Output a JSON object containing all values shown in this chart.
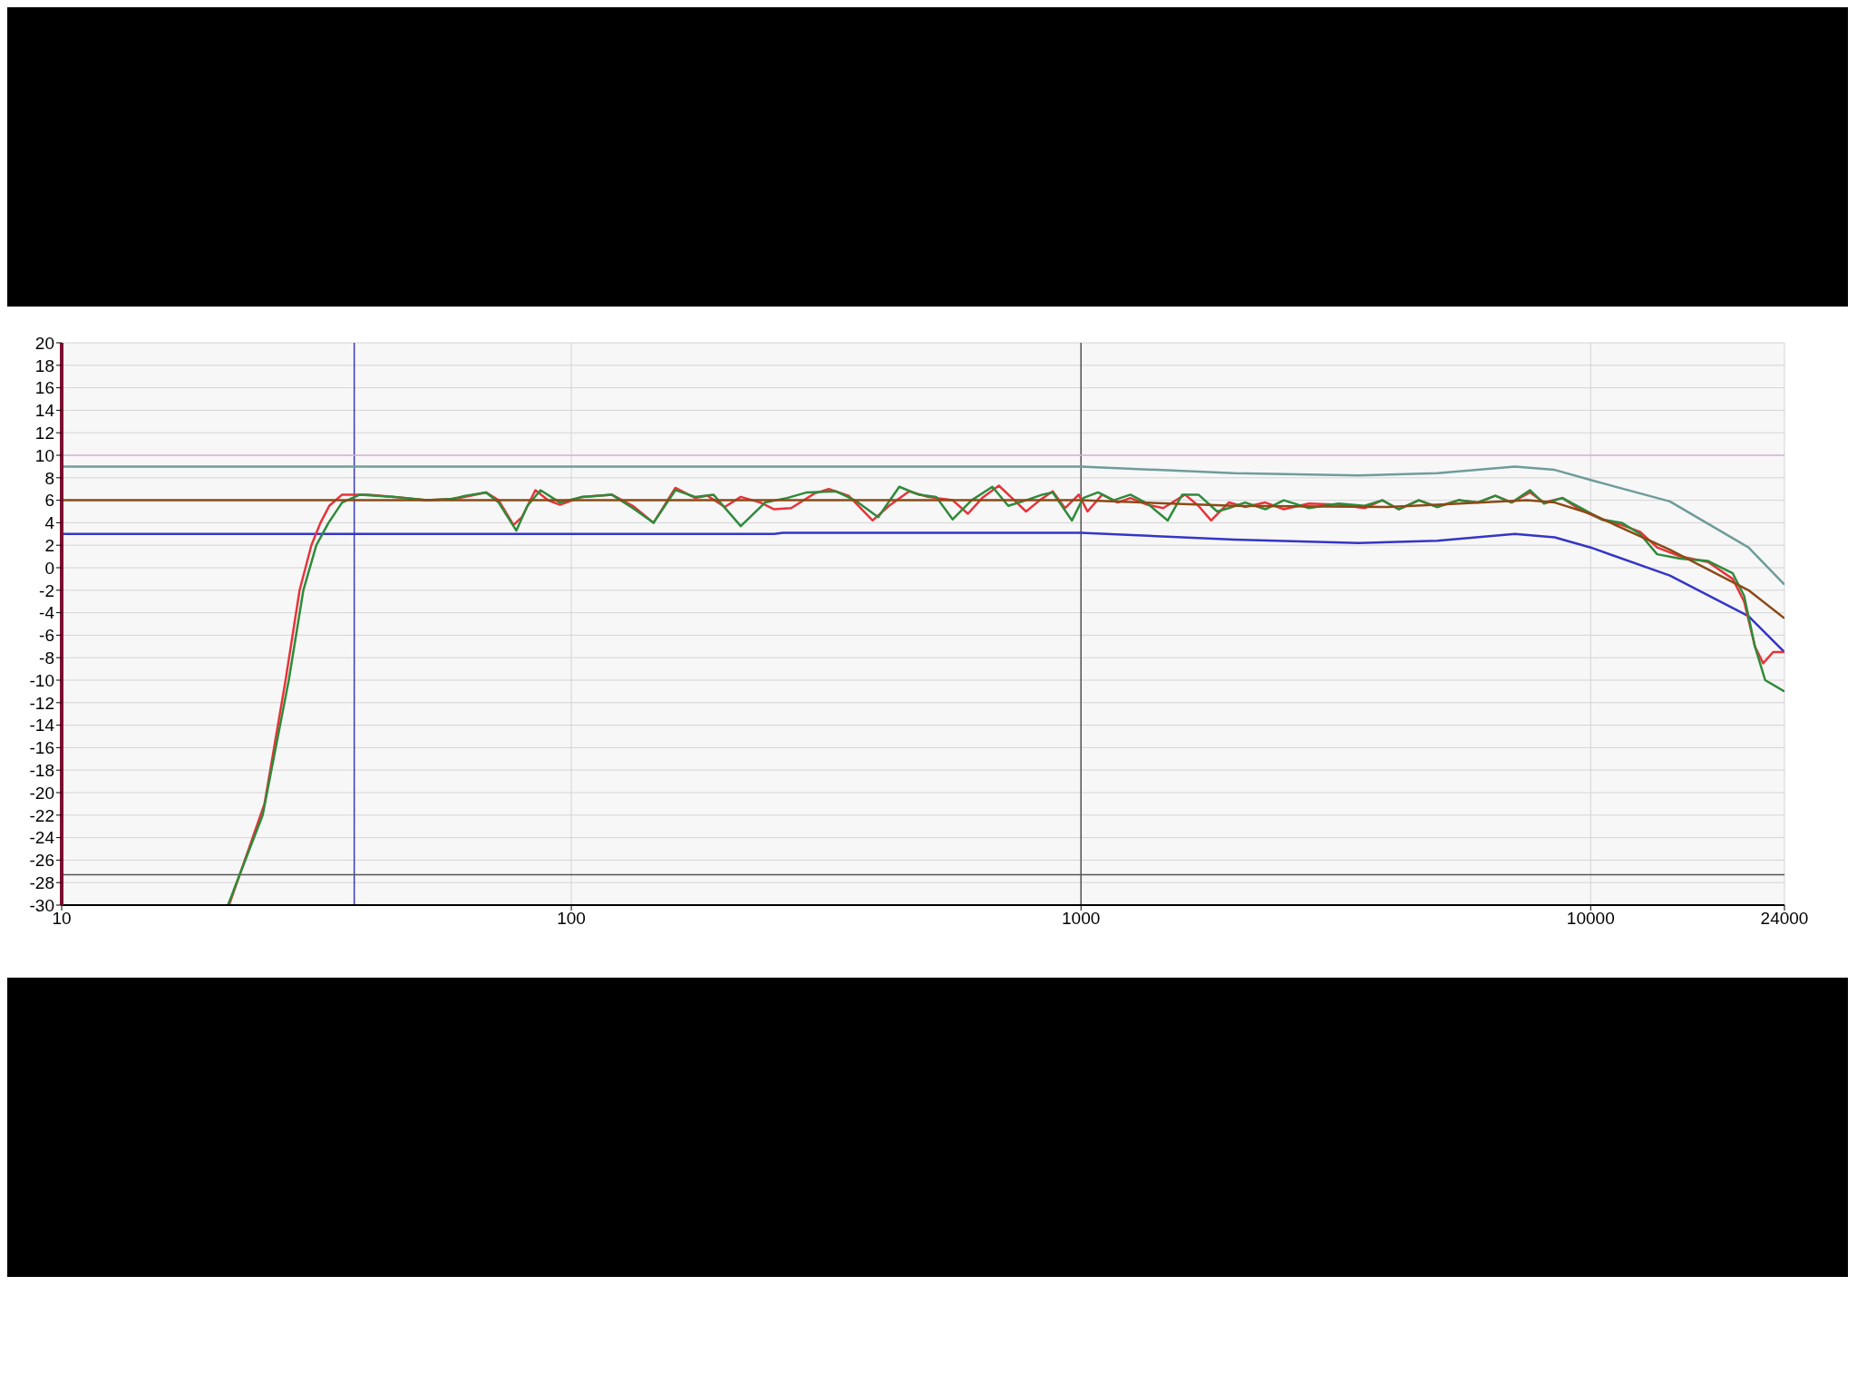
{
  "chart_data": {
    "type": "line",
    "log": "x",
    "xlim": [
      10,
      24000
    ],
    "xticks": [
      10,
      100,
      1000,
      10000,
      24000
    ],
    "ylim": [
      -30,
      20
    ],
    "yticks": [
      20,
      18,
      16,
      14,
      12,
      10,
      8,
      6,
      4,
      2,
      0,
      -2,
      -4,
      -6,
      -8,
      -10,
      -12,
      -14,
      -16,
      -18,
      -20,
      -22,
      -24,
      -26,
      -28,
      -30
    ],
    "grid": true,
    "legend": false,
    "marker": "none",
    "line_style": "solid",
    "series": [
      {
        "color": "#6f9c9c",
        "x": [
          10,
          1000,
          2000,
          3500,
          5000,
          7100,
          8500,
          10000,
          14300,
          20400,
          24000
        ],
        "values": [
          9,
          9,
          8.4,
          8.2,
          8.4,
          9.0,
          8.7,
          7.8,
          5.9,
          1.8,
          -1.5
        ]
      },
      {
        "color": "#3535c8",
        "x": [
          10,
          250,
          260,
          1000,
          2000,
          3500,
          5000,
          7100,
          8500,
          10000,
          14300,
          20400,
          24000
        ],
        "values": [
          3,
          3,
          3.1,
          3.1,
          2.5,
          2.2,
          2.4,
          3.0,
          2.7,
          1.8,
          -0.7,
          -4.3,
          -7.5
        ]
      },
      {
        "color": "#e8333a",
        "x": [
          21.3,
          25.0,
          27.5,
          29.3,
          30.9,
          32.2,
          33.5,
          35.5,
          40,
          45,
          52,
          58,
          62,
          68,
          72,
          77,
          80,
          85,
          90,
          95,
          105,
          120,
          132,
          145,
          160,
          175,
          185,
          200,
          215,
          235,
          250,
          270,
          300,
          320,
          350,
          390,
          420,
          460,
          500,
          560,
          600,
          640,
          690,
          740,
          780,
          830,
          880,
          930,
          990,
          1030,
          1100,
          1180,
          1250,
          1350,
          1450,
          1600,
          1700,
          1800,
          1950,
          2100,
          2300,
          2500,
          2800,
          3200,
          3600,
          3900,
          4200,
          4600,
          5000,
          5500,
          6000,
          6500,
          7000,
          7600,
          8100,
          8800,
          9500,
          10500,
          11500,
          12500,
          13500,
          15000,
          17000,
          19000,
          20000,
          21000,
          21800,
          22800,
          24000
        ],
        "values": [
          -30,
          -21,
          -10,
          -2,
          2,
          4,
          5.5,
          6.5,
          6.5,
          6.3,
          6.0,
          6.1,
          6.3,
          6.7,
          6.0,
          3.8,
          4.5,
          6.9,
          6.0,
          5.6,
          6.3,
          6.5,
          5.5,
          4.0,
          7.1,
          6.2,
          6.4,
          5.4,
          6.3,
          5.8,
          5.2,
          5.3,
          6.6,
          7.0,
          6.4,
          4.2,
          5.5,
          6.8,
          6.3,
          6.0,
          4.8,
          6.2,
          7.3,
          6.0,
          5.0,
          6.0,
          6.8,
          5.3,
          6.5,
          5.0,
          6.5,
          5.8,
          6.2,
          5.6,
          5.3,
          6.5,
          5.5,
          4.2,
          5.8,
          5.4,
          5.8,
          5.2,
          5.7,
          5.6,
          5.3,
          6.0,
          5.2,
          6.0,
          5.4,
          6.0,
          5.8,
          6.4,
          5.8,
          6.7,
          5.8,
          6.2,
          5.2,
          4.3,
          3.8,
          3.2,
          1.8,
          1.0,
          0.5,
          -1.0,
          -3,
          -7,
          -8.5,
          -7.5,
          -7.5
        ]
      },
      {
        "color": "#2e8b3a",
        "x": [
          21.2,
          24.8,
          27.9,
          29.8,
          31.6,
          33.4,
          35.5,
          38.5,
          45,
          52,
          58,
          62,
          68,
          72,
          78,
          82,
          87,
          95,
          105,
          120,
          132,
          145,
          160,
          175,
          190,
          215,
          240,
          265,
          290,
          330,
          360,
          400,
          440,
          480,
          520,
          560,
          610,
          670,
          720,
          780,
          840,
          880,
          960,
          1010,
          1080,
          1160,
          1250,
          1350,
          1480,
          1580,
          1700,
          1850,
          1950,
          2100,
          2300,
          2500,
          2800,
          3200,
          3600,
          3900,
          4200,
          4600,
          5000,
          5500,
          6000,
          6500,
          7000,
          7600,
          8100,
          8800,
          9500,
          10500,
          11500,
          12500,
          13500,
          15000,
          17000,
          19000,
          20000,
          21000,
          22000,
          24000
        ],
        "values": [
          -30,
          -22,
          -10,
          -2,
          2,
          4,
          5.8,
          6.5,
          6.3,
          6.0,
          6.1,
          6.4,
          6.7,
          5.8,
          3.3,
          5.5,
          6.9,
          5.8,
          6.3,
          6.5,
          5.3,
          4.0,
          6.9,
          6.3,
          6.5,
          3.7,
          5.8,
          6.2,
          6.7,
          6.8,
          6.0,
          4.5,
          7.2,
          6.5,
          6.3,
          4.3,
          6.0,
          7.2,
          5.5,
          6.0,
          6.5,
          6.7,
          4.2,
          6.2,
          6.7,
          6.0,
          6.5,
          5.7,
          4.2,
          6.5,
          6.5,
          5.0,
          5.3,
          5.8,
          5.2,
          6.0,
          5.3,
          5.7,
          5.5,
          6.0,
          5.2,
          6.0,
          5.4,
          6.0,
          5.8,
          6.4,
          5.8,
          6.9,
          5.7,
          6.2,
          5.4,
          4.3,
          4.0,
          3.0,
          1.2,
          0.8,
          0.6,
          -0.5,
          -2.5,
          -7,
          -10,
          -11
        ]
      },
      {
        "color": "#8b4a16",
        "x": [
          10,
          1000,
          2000,
          4000,
          5000,
          7500,
          8500,
          10000,
          14300,
          20400,
          24000
        ],
        "values": [
          6,
          6,
          5.5,
          5.4,
          5.6,
          6.0,
          5.8,
          4.8,
          1.6,
          -2,
          -4.5
        ]
      }
    ],
    "ref_lines": [
      {
        "axis": "x",
        "value": 37.5,
        "color": "#3a3ac0"
      },
      {
        "axis": "x",
        "value": 1000,
        "color": "#555555"
      },
      {
        "axis": "y",
        "value": -27.3,
        "color": "#555555"
      },
      {
        "axis": "y",
        "value": 10,
        "color": "#d8b0d8"
      }
    ]
  }
}
